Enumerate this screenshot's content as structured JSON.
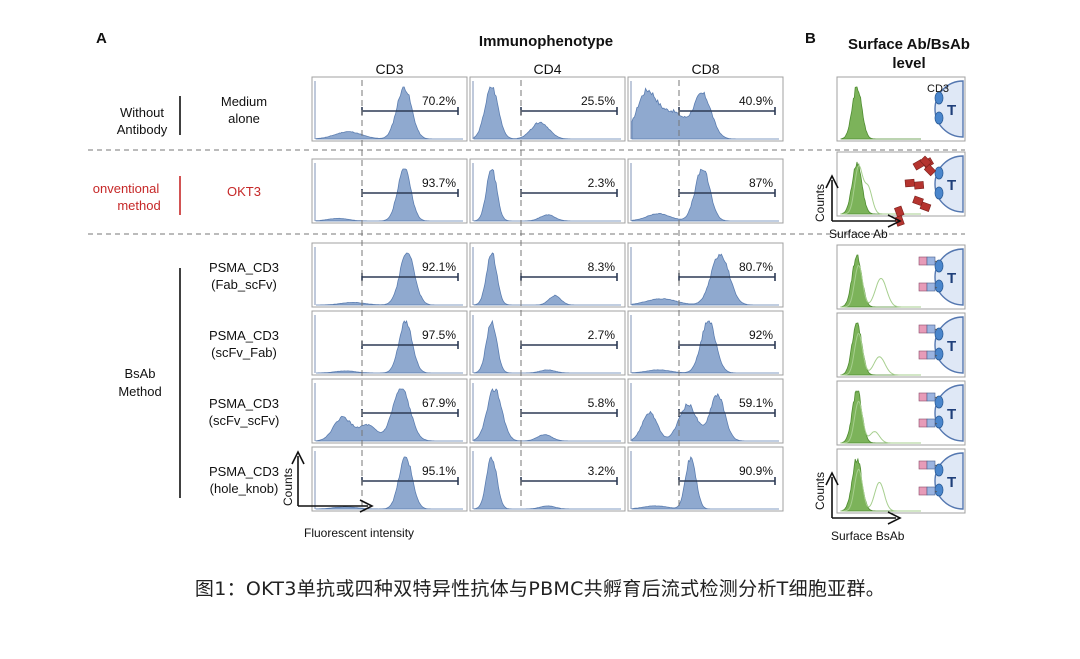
{
  "panel_a_label": "A",
  "panel_b_label": "B",
  "panel_a_title": "Immunophenotype",
  "panel_b_title_line1": "Surface Ab/BsAb",
  "panel_b_title_line2": "level",
  "markers": [
    "CD3",
    "CD4",
    "CD8"
  ],
  "groups": {
    "without": {
      "line1": "Without",
      "line2": "Antibody"
    },
    "conventional": {
      "line1": "onventional",
      "line2": "method"
    },
    "bsab": {
      "line1": "BsAb",
      "line2": "Method"
    }
  },
  "rows": [
    {
      "line1": "Medium",
      "line2": "alone"
    },
    {
      "line1": "OKT3",
      "line2": ""
    },
    {
      "line1": "PSMA_CD3",
      "line2": "(Fab_scFv)"
    },
    {
      "line1": "PSMA_CD3",
      "line2": "(scFv_Fab)"
    },
    {
      "line1": "PSMA_CD3",
      "line2": "(scFv_scFv)"
    },
    {
      "line1": "PSMA_CD3",
      "line2": "(hole_knob)"
    }
  ],
  "axes_a": {
    "ylabel": "Counts",
    "xlabel": "Fluorescent intensity"
  },
  "axes_b1": {
    "ylabel": "Counts",
    "xlabel": "Surface Ab"
  },
  "axes_b2": {
    "ylabel": "Counts",
    "xlabel": "Surface BsAb"
  },
  "cell_label": "T",
  "cd3_label": "CD3",
  "colors": {
    "histogram": "#8fa9cf",
    "histogram_edge": "#5b7db0",
    "surface": "#7cb35a",
    "surface_edge": "#4e8c30",
    "gate": "#2d3a55",
    "red_text": "#c62828",
    "antibody": "#b5342f",
    "bsab_pink": "#e79bb8",
    "bsab_blue": "#9bb4e0",
    "cell": "#dfe8f6",
    "cell_edge": "#5477b0"
  },
  "chart_data": {
    "type": "histogram",
    "title": "Immunophenotype",
    "xlabel": "Fluorescent intensity",
    "ylabel": "Counts",
    "columns": [
      "CD3",
      "CD4",
      "CD8"
    ],
    "rows": [
      "Medium alone",
      "OKT3",
      "PSMA_CD3 (Fab_scFv)",
      "PSMA_CD3 (scFv_Fab)",
      "PSMA_CD3 (scFv_scFv)",
      "PSMA_CD3 (hole_knob)"
    ],
    "gated_percent": [
      [
        "70.2%",
        "25.5%",
        "40.9%"
      ],
      [
        "93.7%",
        "2.3%",
        "87%"
      ],
      [
        "92.1%",
        "8.3%",
        "80.7%"
      ],
      [
        "97.5%",
        "2.7%",
        "92%"
      ],
      [
        "67.9%",
        "5.8%",
        "59.1%"
      ],
      [
        "95.1%",
        "3.2%",
        "90.9%"
      ]
    ]
  },
  "caption": "图1：OKT3单抗或四种双特异性抗体与PBMC共孵育后流式检测分析T细胞亚群。"
}
